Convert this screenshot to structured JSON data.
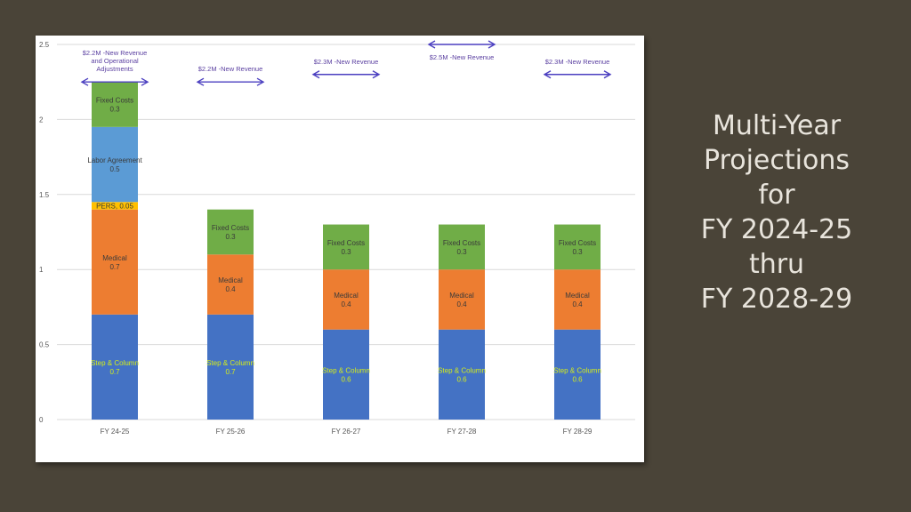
{
  "slide": {
    "title_lines": [
      "Multi-Year",
      "Projections",
      "for",
      "FY 2024-25",
      "thru",
      "FY 2028-29"
    ]
  },
  "colors": {
    "background": "#4a4438",
    "fixed_costs": "#70ad47",
    "labor_agreement": "#5b9bd5",
    "pers": "#ffc000",
    "medical": "#ed7d31",
    "step_column": "#4472c4",
    "gridline": "#d9d9d9",
    "arrow": "#4b3fc0",
    "arrow_glow": "#9fd4ff"
  },
  "chart_data": {
    "type": "bar",
    "stacked": true,
    "categories": [
      "FY 24-25",
      "FY 25-26",
      "FY 26-27",
      "FY 27-28",
      "FY 28-29"
    ],
    "ylim": [
      0,
      2.5
    ],
    "yticks": [
      "0",
      "0.5",
      "1",
      "1.5",
      "2",
      "2.5"
    ],
    "grid": true,
    "series": [
      {
        "name": "Step & Column",
        "values": [
          0.7,
          0.7,
          0.6,
          0.6,
          0.6
        ],
        "labels": [
          "Step & Column\n0.7",
          "Step & Column\n0.7",
          "Step & Column\n0.6",
          "Step & Column\n0.6",
          "Step & Column\n0.6"
        ],
        "color_key": "step_column",
        "text_color": "#d4ec1a"
      },
      {
        "name": "Medical",
        "values": [
          0.7,
          0.4,
          0.4,
          0.4,
          0.4
        ],
        "labels": [
          "Medical\n0.7",
          "Medical\n0.4",
          "Medical\n0.4",
          "Medical\n0.4",
          "Medical\n0.4"
        ],
        "color_key": "medical",
        "text_color": "#3a3a3a"
      },
      {
        "name": "PERS",
        "values": [
          0.05,
          0,
          0,
          0,
          0
        ],
        "labels": [
          "PERS, 0.05",
          "",
          "",
          "",
          ""
        ],
        "color_key": "pers",
        "text_color": "#3a3a3a"
      },
      {
        "name": "Labor Agreement",
        "values": [
          0.5,
          0,
          0,
          0,
          0
        ],
        "labels": [
          "Labor Agreement\n0.5",
          "",
          "",
          "",
          ""
        ],
        "color_key": "labor_agreement",
        "text_color": "#3a3a3a"
      },
      {
        "name": "Fixed Costs",
        "values": [
          0.3,
          0.3,
          0.3,
          0.3,
          0.3
        ],
        "labels": [
          "Fixed Costs\n0.3",
          "Fixed Costs\n0.3",
          "Fixed Costs\n0.3",
          "Fixed Costs\n0.3",
          "Fixed Costs\n0.3"
        ],
        "color_key": "fixed_costs",
        "text_color": "#3a3a3a"
      }
    ],
    "annotations": [
      {
        "category": "FY 24-25",
        "text": "$2.2M -New Revenue\nand Operational\nAdjustments",
        "arrow_y": 2.25
      },
      {
        "category": "FY 25-26",
        "text": "$2.2M -New Revenue",
        "arrow_y": 2.25
      },
      {
        "category": "FY 26-27",
        "text": "$2.3M -New Revenue",
        "arrow_y": 2.3
      },
      {
        "category": "FY 27-28",
        "text": "$2.5M -New Revenue",
        "arrow_y": 2.5
      },
      {
        "category": "FY 28-29",
        "text": "$2.3M -New Revenue",
        "arrow_y": 2.3
      }
    ]
  }
}
